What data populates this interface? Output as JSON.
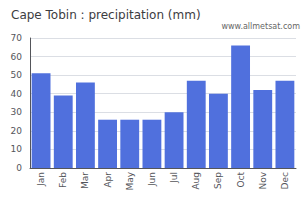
{
  "chart_data": {
    "type": "bar",
    "title": "Cape Tobin : precipitation (mm)",
    "categories": [
      "Jan",
      "Feb",
      "Mar",
      "Apr",
      "May",
      "Jun",
      "Jul",
      "Aug",
      "Sep",
      "Oct",
      "Nov",
      "Dec"
    ],
    "values": [
      51,
      39,
      46,
      26,
      26,
      26,
      30,
      47,
      40,
      66,
      42,
      47
    ],
    "annotations": [
      "www.allmetsat.com"
    ],
    "ylim": [
      0,
      70
    ],
    "yticks": [
      0,
      10,
      20,
      30,
      40,
      50,
      60,
      70
    ],
    "grid": true
  }
}
